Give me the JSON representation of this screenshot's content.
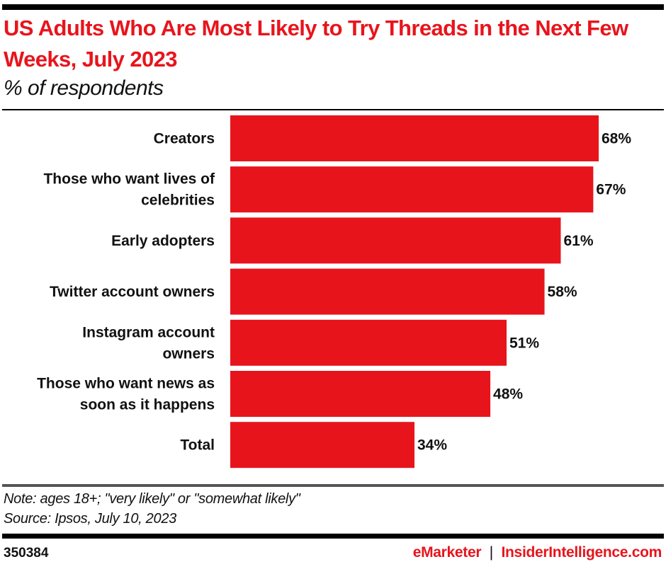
{
  "chart_data": {
    "type": "bar",
    "orientation": "horizontal",
    "title": "US Adults Who Are Most Likely to Try Threads in the Next Few Weeks, July 2023",
    "subtitle": "% of respondents",
    "categories": [
      [
        "Creators"
      ],
      [
        "Those who want lives of",
        "celebrities"
      ],
      [
        "Early adopters"
      ],
      [
        "Twitter account owners"
      ],
      [
        "Instagram account",
        "owners"
      ],
      [
        "Those who want news as",
        "soon as it happens"
      ],
      [
        "Total"
      ]
    ],
    "values": [
      68,
      67,
      61,
      58,
      51,
      48,
      34
    ],
    "value_labels": [
      "68%",
      "67%",
      "61%",
      "58%",
      "51%",
      "48%",
      "34%"
    ],
    "xlim": [
      0,
      68
    ],
    "grid": false,
    "bar_color": "#e8141c"
  },
  "footer": {
    "note": "Note: ages 18+; \"very likely\" or \"somewhat likely\"",
    "source": "Source: Ipsos, July 10, 2023",
    "chart_id": "350384",
    "brand_emarketer": "eMarketer",
    "brand_separator": "|",
    "brand_insider": "InsiderIntelligence.com"
  }
}
